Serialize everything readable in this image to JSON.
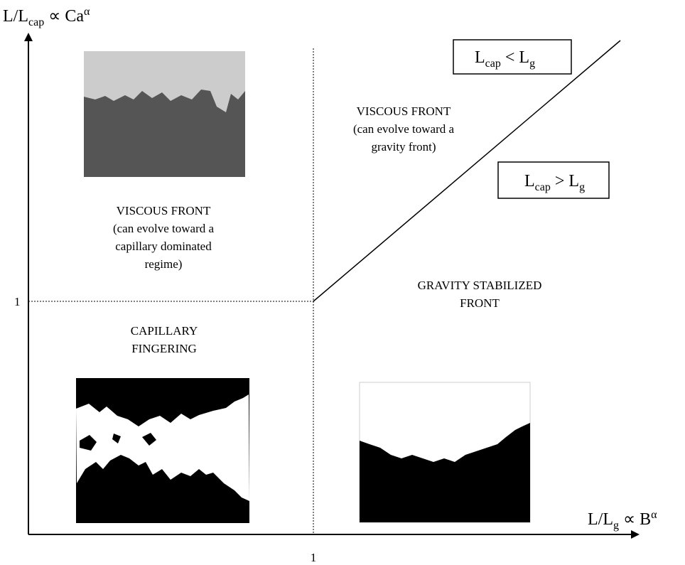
{
  "axes": {
    "y_label": {
      "main": "L/L",
      "sub": "cap",
      "rest": " ∝ Ca",
      "sup": "α"
    },
    "x_label": {
      "main": "L/L",
      "sub": "g",
      "rest": " ∝ B",
      "sup": "α"
    },
    "y_tick": "1",
    "x_tick": "1"
  },
  "boxes": [
    {
      "a": "L",
      "a_sub": "cap",
      "op": " < L",
      "b_sub": "g"
    },
    {
      "a": "L",
      "a_sub": "cap",
      "op": " > L",
      "b_sub": "g"
    }
  ],
  "regions": [
    {
      "lines": [
        "VISCOUS FRONT",
        "(can evolve toward a",
        "capillary dominated",
        "regime)"
      ]
    },
    {
      "lines": [
        "VISCOUS FRONT",
        "(can evolve toward a",
        "gravity front)"
      ]
    },
    {
      "lines": [
        "GRAVITY STABILIZED",
        "FRONT"
      ]
    },
    {
      "lines": [
        "CAPILLARY",
        "FINGERING"
      ]
    }
  ]
}
